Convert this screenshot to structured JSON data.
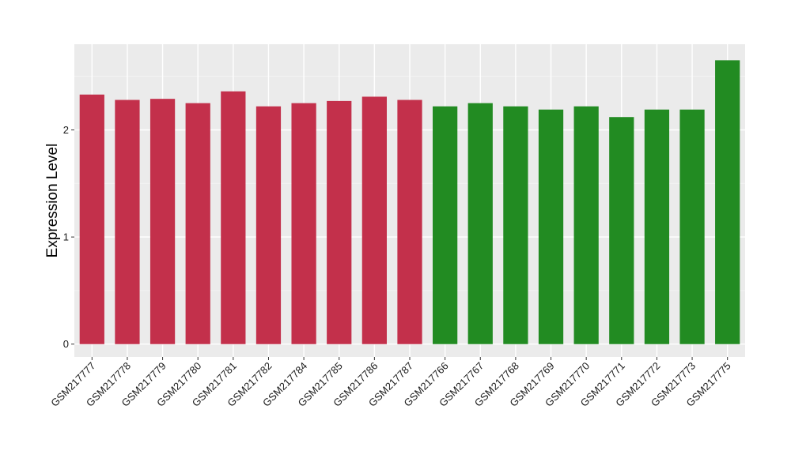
{
  "chart_data": {
    "type": "bar",
    "title": "",
    "xlabel": "",
    "ylabel": "Expression Level",
    "ylim": [
      -0.12,
      2.8
    ],
    "yticks": [
      0,
      1,
      2
    ],
    "grid": true,
    "legend": "none",
    "colors": {
      "group_a": "#c3304b",
      "group_b": "#228b22",
      "panel_background": "#ebebeb",
      "grid_major": "#ffffff",
      "grid_minor": "#f4f4f4"
    },
    "categories": [
      "GSM217777",
      "GSM217778",
      "GSM217779",
      "GSM217780",
      "GSM217781",
      "GSM217782",
      "GSM217784",
      "GSM217785",
      "GSM217786",
      "GSM217787",
      "GSM217766",
      "GSM217767",
      "GSM217768",
      "GSM217769",
      "GSM217770",
      "GSM217771",
      "GSM217772",
      "GSM217773",
      "GSM217775"
    ],
    "values": [
      2.33,
      2.28,
      2.29,
      2.25,
      2.36,
      2.22,
      2.25,
      2.27,
      2.31,
      2.28,
      2.22,
      2.25,
      2.22,
      2.19,
      2.22,
      2.12,
      2.19,
      2.19,
      2.65
    ],
    "bar_groups": [
      "group_a",
      "group_a",
      "group_a",
      "group_a",
      "group_a",
      "group_a",
      "group_a",
      "group_a",
      "group_a",
      "group_a",
      "group_b",
      "group_b",
      "group_b",
      "group_b",
      "group_b",
      "group_b",
      "group_b",
      "group_b",
      "group_b"
    ]
  }
}
